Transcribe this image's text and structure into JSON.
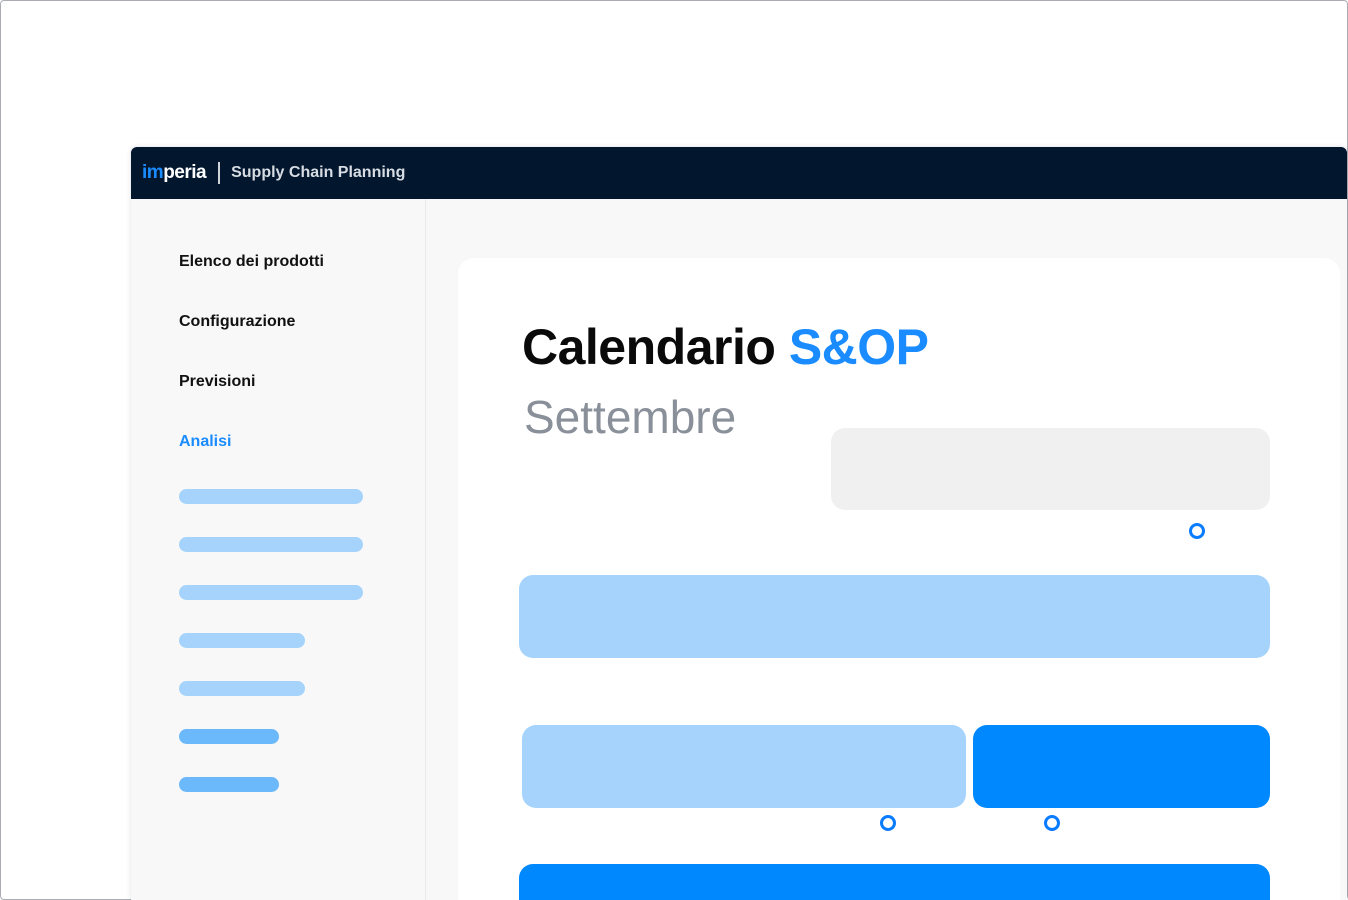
{
  "header": {
    "logo_prefix": "im",
    "logo_suffix": "peria",
    "app_name": "Supply Chain Planning"
  },
  "sidebar": {
    "items": [
      {
        "label": "Elenco dei prodotti",
        "active": false
      },
      {
        "label": "Configurazione",
        "active": false
      },
      {
        "label": "Previsioni",
        "active": false
      },
      {
        "label": "Analisi",
        "active": true
      }
    ]
  },
  "main": {
    "title": "Calendario",
    "title_accent": "S&OP",
    "subtitle": "Settembre"
  },
  "colors": {
    "accent": "#1a8cff",
    "light_blue": "#a6d3fc",
    "blue": "#0088ff",
    "header_bg": "#02162e"
  }
}
